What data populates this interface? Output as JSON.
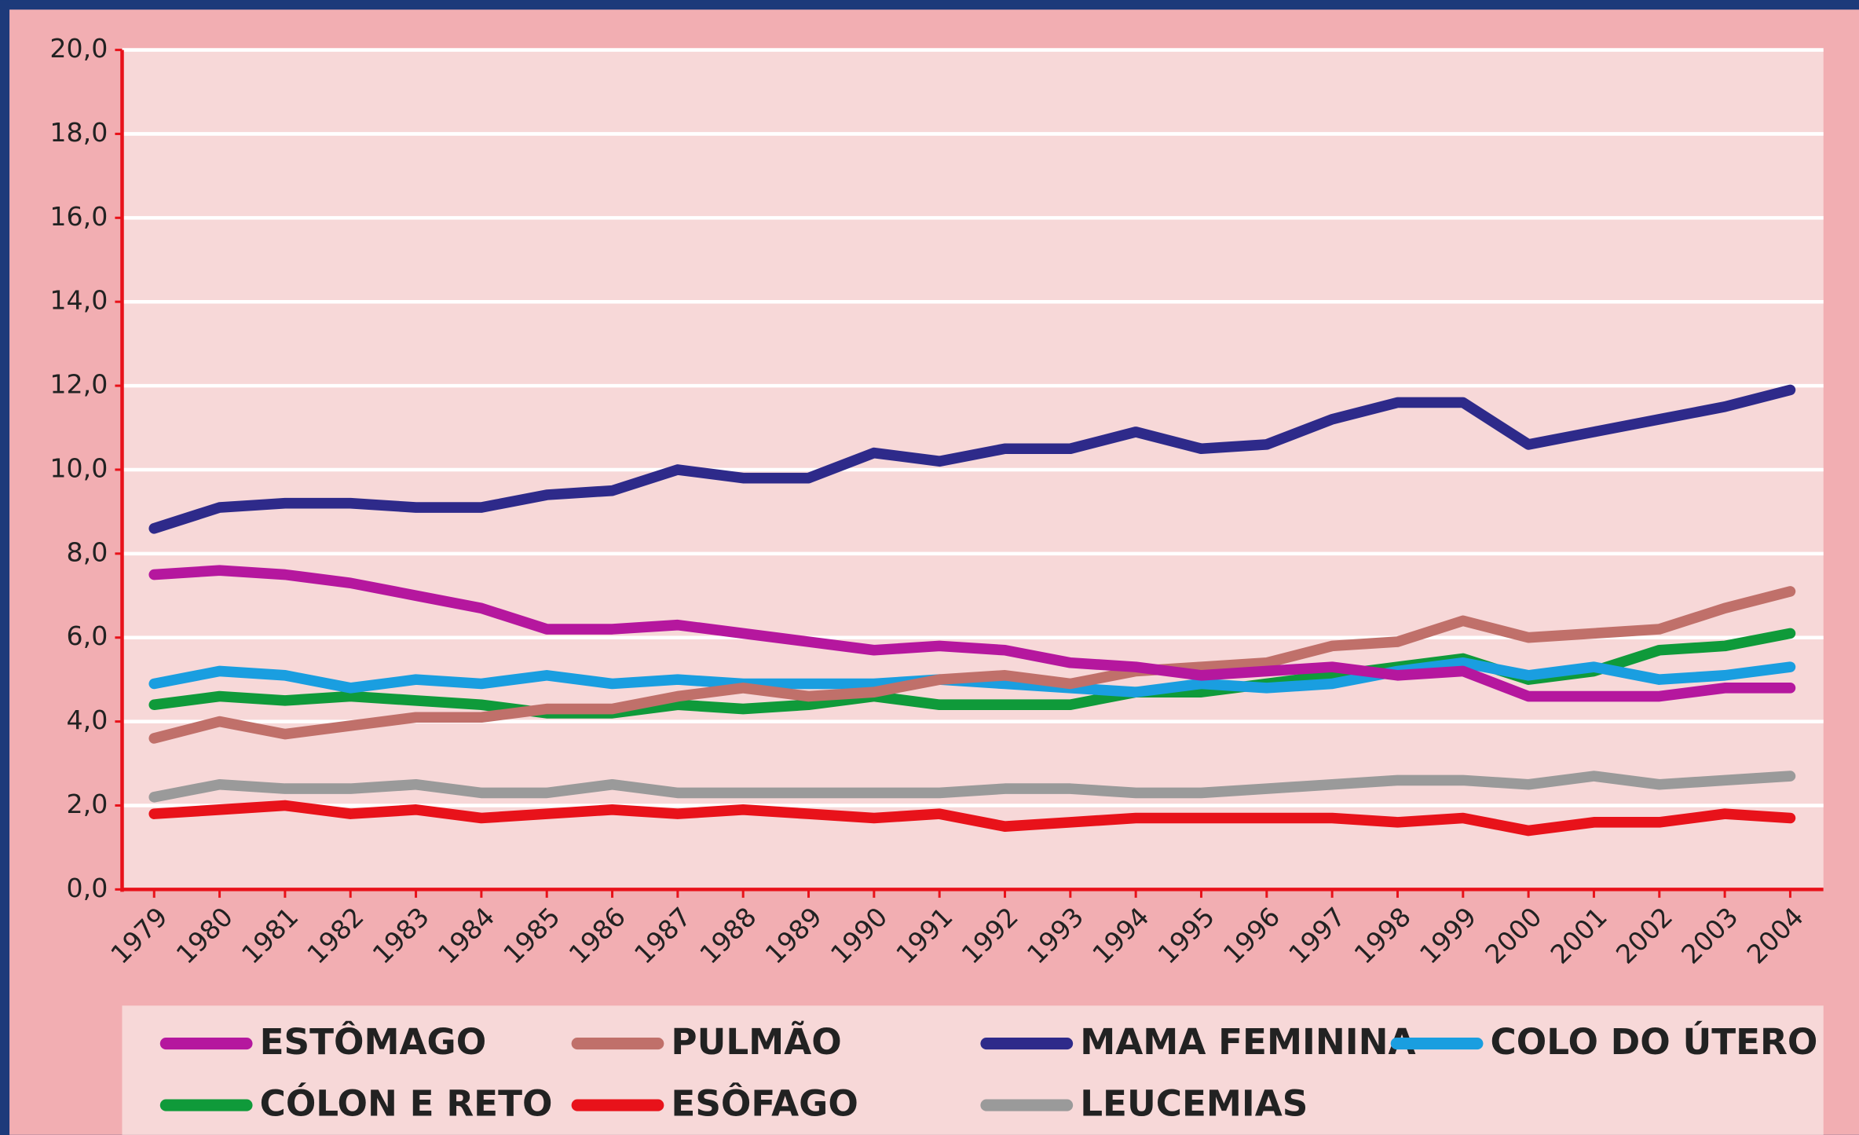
{
  "chart_data": {
    "type": "line",
    "categories": [
      "1979",
      "1980",
      "1981",
      "1982",
      "1983",
      "1984",
      "1985",
      "1986",
      "1987",
      "1988",
      "1989",
      "1990",
      "1991",
      "1992",
      "1993",
      "1994",
      "1995",
      "1996",
      "1997",
      "1998",
      "1999",
      "2000",
      "2001",
      "2002",
      "2003",
      "2004"
    ],
    "series": [
      {
        "name": "ESTÔMAGO",
        "color": "#b5179e",
        "values": [
          7.5,
          7.6,
          7.5,
          7.3,
          7.0,
          6.7,
          6.2,
          6.2,
          6.3,
          6.1,
          5.9,
          5.7,
          5.8,
          5.7,
          5.4,
          5.3,
          5.1,
          5.2,
          5.3,
          5.1,
          5.2,
          4.6,
          4.6,
          4.6,
          4.8,
          4.8
        ]
      },
      {
        "name": "PULMÃO",
        "color": "#c0706a",
        "values": [
          3.6,
          4.0,
          3.7,
          3.9,
          4.1,
          4.1,
          4.3,
          4.3,
          4.6,
          4.8,
          4.6,
          4.7,
          5.0,
          5.1,
          4.9,
          5.2,
          5.3,
          5.4,
          5.8,
          5.9,
          6.4,
          6.0,
          6.1,
          6.2,
          6.7,
          7.1
        ]
      },
      {
        "name": "MAMA FEMININA",
        "color": "#2e2a8a",
        "values": [
          8.6,
          9.1,
          9.2,
          9.2,
          9.1,
          9.1,
          9.4,
          9.5,
          10.0,
          9.8,
          9.8,
          10.4,
          10.2,
          10.5,
          10.5,
          10.9,
          10.5,
          10.6,
          11.2,
          11.6,
          11.6,
          10.6,
          10.9,
          11.2,
          11.5,
          11.9
        ]
      },
      {
        "name": "COLO DO ÚTERO",
        "color": "#1a9ee0",
        "values": [
          4.9,
          5.2,
          5.1,
          4.8,
          5.0,
          4.9,
          5.1,
          4.9,
          5.0,
          4.9,
          4.9,
          4.9,
          5.0,
          4.9,
          4.8,
          4.7,
          4.9,
          4.8,
          4.9,
          5.2,
          5.4,
          5.1,
          5.3,
          5.0,
          5.1,
          5.3
        ]
      },
      {
        "name": "CÓLON E RETO",
        "color": "#0f9a3a",
        "values": [
          4.4,
          4.6,
          4.5,
          4.6,
          4.5,
          4.4,
          4.2,
          4.2,
          4.4,
          4.3,
          4.4,
          4.6,
          4.4,
          4.4,
          4.4,
          4.7,
          4.7,
          4.9,
          5.1,
          5.3,
          5.5,
          5.0,
          5.2,
          5.7,
          5.8,
          6.1
        ]
      },
      {
        "name": "ESÔFAGO",
        "color": "#e8121a",
        "values": [
          1.8,
          1.9,
          2.0,
          1.8,
          1.9,
          1.7,
          1.8,
          1.9,
          1.8,
          1.9,
          1.8,
          1.7,
          1.8,
          1.5,
          1.6,
          1.7,
          1.7,
          1.7,
          1.7,
          1.6,
          1.7,
          1.4,
          1.6,
          1.6,
          1.8,
          1.7
        ]
      },
      {
        "name": "LEUCEMIAS",
        "color": "#9a9a9a",
        "values": [
          2.2,
          2.5,
          2.4,
          2.4,
          2.5,
          2.3,
          2.3,
          2.5,
          2.3,
          2.3,
          2.3,
          2.3,
          2.3,
          2.4,
          2.4,
          2.3,
          2.3,
          2.4,
          2.5,
          2.6,
          2.6,
          2.5,
          2.7,
          2.5,
          2.6,
          2.7
        ]
      }
    ],
    "ylim": [
      0,
      20
    ],
    "yticks": [
      {
        "value": 0,
        "label": "0,0"
      },
      {
        "value": 2,
        "label": "2,0"
      },
      {
        "value": 4,
        "label": "4,0"
      },
      {
        "value": 6,
        "label": "6,0"
      },
      {
        "value": 8,
        "label": "8,0"
      },
      {
        "value": 10,
        "label": "10,0"
      },
      {
        "value": 12,
        "label": "12,0"
      },
      {
        "value": 14,
        "label": "14,0"
      },
      {
        "value": 16,
        "label": "16,0"
      },
      {
        "value": 18,
        "label": "18,0"
      },
      {
        "value": 20,
        "label": "20,0"
      }
    ],
    "grid": true
  }
}
